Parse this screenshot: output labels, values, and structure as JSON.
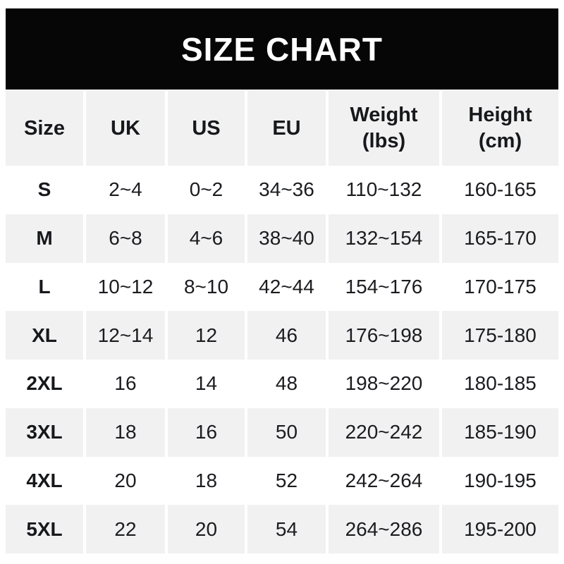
{
  "title": "SIZE CHART",
  "colors": {
    "banner_bg": "#060606",
    "banner_text": "#ffffff",
    "row_alt_bg": "#f1f1f2",
    "row_bg": "#ffffff",
    "text": "#1b1c1f"
  },
  "chart_data": {
    "type": "table",
    "title": "SIZE CHART",
    "columns": [
      {
        "label": "Size",
        "sublabel": ""
      },
      {
        "label": "UK",
        "sublabel": ""
      },
      {
        "label": "US",
        "sublabel": ""
      },
      {
        "label": "EU",
        "sublabel": ""
      },
      {
        "label": "Weight",
        "sublabel": "(lbs)"
      },
      {
        "label": "Height",
        "sublabel": "(cm)"
      }
    ],
    "rows": [
      [
        "S",
        "2~4",
        "0~2",
        "34~36",
        "110~132",
        "160-165"
      ],
      [
        "M",
        "6~8",
        "4~6",
        "38~40",
        "132~154",
        "165-170"
      ],
      [
        "L",
        "10~12",
        "8~10",
        "42~44",
        "154~176",
        "170-175"
      ],
      [
        "XL",
        "12~14",
        "12",
        "46",
        "176~198",
        "175-180"
      ],
      [
        "2XL",
        "16",
        "14",
        "48",
        "198~220",
        "180-185"
      ],
      [
        "3XL",
        "18",
        "16",
        "50",
        "220~242",
        "185-190"
      ],
      [
        "4XL",
        "20",
        "18",
        "52",
        "242~264",
        "190-195"
      ],
      [
        "5XL",
        "22",
        "20",
        "54",
        "264~286",
        "195-200"
      ]
    ],
    "layout": {
      "alternating_row_shading": true,
      "header_shaded": true,
      "grid": "off"
    }
  }
}
